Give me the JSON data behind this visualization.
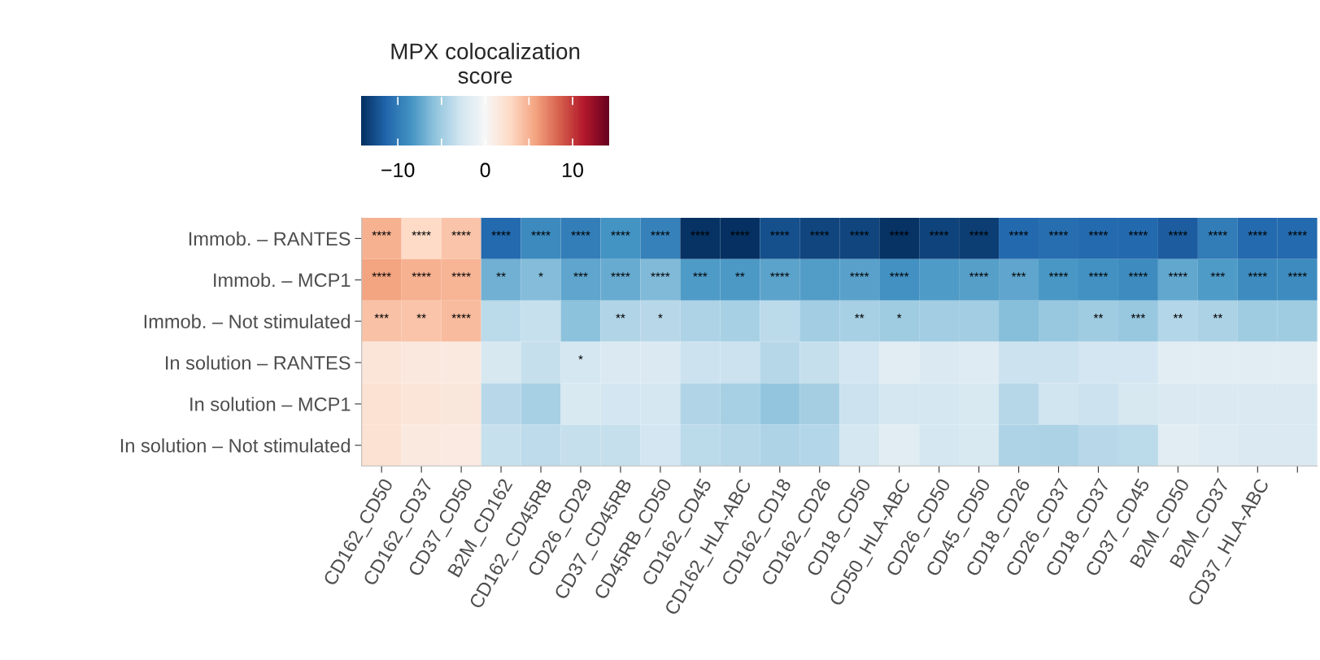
{
  "chart_data": {
    "type": "heatmap",
    "clabel": "MPX colocalization\nscore",
    "categories": [
      "CD162_CD50",
      "CD162_CD37",
      "CD37_CD50",
      "B2M_CD162",
      "CD162_CD45RB",
      "CD26_CD29",
      "CD37_CD45RB",
      "CD45RB_CD50",
      "CD162_CD45",
      "CD162_HLA-ABC",
      "CD162_CD18",
      "CD162_CD26",
      "CD18_CD50",
      "CD50_HLA-ABC",
      "CD26_CD50",
      "CD45_CD50",
      "CD18_CD26",
      "CD26_CD37",
      "CD18_CD37",
      "CD37_CD45",
      "B2M_CD50",
      "B2M_CD37",
      "CD37_HLA-ABC",
      null
    ],
    "y_categories": [
      "Immob. – RANTES",
      "Immob. – MCP1",
      "Immob. – Not stimulated",
      "In solution – RANTES",
      "In solution – MCP1",
      "In solution – Not stimulated"
    ],
    "cells": [
      [
        5,
        2.8,
        4,
        -11,
        -9,
        -9.8,
        -8.5,
        -9.6,
        -14,
        -14.1,
        -12.5,
        -13,
        -13,
        -14,
        -13.1,
        -13.5,
        -11.2,
        -10.8,
        -11,
        -11.2,
        -11.8,
        -9.9,
        -11,
        -11
      ],
      [
        5.7,
        5,
        4.8,
        -6.8,
        -6.2,
        -7.5,
        -7.2,
        -6.3,
        -8,
        -8.2,
        -7.6,
        -7.9,
        -7.7,
        -8.6,
        -8,
        -7.8,
        -7.5,
        -8.3,
        -8.6,
        -8.9,
        -7.4,
        -8,
        -8.9,
        -8.9
      ],
      [
        4.2,
        4,
        4.5,
        -3.8,
        -3.3,
        -5.8,
        -4.3,
        -3.9,
        -4.4,
        -4.7,
        -3.8,
        -4.9,
        -4.7,
        -5,
        -4.9,
        -4.9,
        -6,
        -5.4,
        -5,
        -5.4,
        -4.2,
        -4.5,
        -5,
        -5
      ],
      [
        1.8,
        1.5,
        1.4,
        -2.4,
        -3.4,
        -2.5,
        -2,
        -2,
        -3,
        -3,
        -4,
        -3.4,
        -2.6,
        -1.6,
        -2.2,
        -1.8,
        -3,
        -3.1,
        -2.6,
        -2.6,
        -1.6,
        -1.6,
        -1.6,
        -1.6
      ],
      [
        2.2,
        1.8,
        1.6,
        -3.9,
        -4.7,
        -2.3,
        -2.6,
        -2.5,
        -4.3,
        -4.7,
        -5.6,
        -4.8,
        -3.1,
        -2.5,
        -2.5,
        -2.3,
        -4.1,
        -2.8,
        -3,
        -2.4,
        -2,
        -2,
        -2.2,
        -2.2
      ],
      [
        2.2,
        1.4,
        1.3,
        -3.3,
        -3.7,
        -3.4,
        -3.4,
        -2.6,
        -3.8,
        -4,
        -4.4,
        -4.2,
        -2.5,
        -1.6,
        -2.5,
        -2.3,
        -4.4,
        -4.5,
        -3.9,
        -3.8,
        -1.6,
        -1.8,
        -2.2,
        -2.2
      ]
    ],
    "cell_labels": [
      [
        "****",
        "****",
        "****",
        "****",
        "****",
        "****",
        "****",
        "****",
        "****",
        "****",
        "****",
        "****",
        "****",
        "****",
        "****",
        "****",
        "****",
        "****",
        "****",
        "****",
        "****",
        "****",
        "****",
        "****"
      ],
      [
        "****",
        "****",
        "****",
        "**",
        "*",
        "***",
        "****",
        "****",
        "***",
        "**",
        "****",
        null,
        "****",
        "****",
        null,
        "****",
        "***",
        "****",
        "****",
        "****",
        "****",
        "***",
        "****",
        "****"
      ],
      [
        "***",
        "**",
        "****",
        null,
        null,
        null,
        "**",
        "*",
        null,
        null,
        null,
        null,
        "**",
        "*",
        null,
        null,
        null,
        null,
        "**",
        "***",
        "**",
        "**",
        null,
        null
      ],
      [
        null,
        null,
        null,
        null,
        null,
        "*",
        null,
        null,
        null,
        null,
        null,
        null,
        null,
        null,
        null,
        null,
        null,
        null,
        null,
        null,
        null,
        null,
        null,
        null
      ],
      [
        null,
        null,
        null,
        null,
        null,
        null,
        null,
        null,
        null,
        null,
        null,
        null,
        null,
        null,
        null,
        null,
        null,
        null,
        null,
        null,
        null,
        null,
        null,
        null
      ],
      [
        null,
        null,
        null,
        null,
        null,
        null,
        null,
        null,
        null,
        null,
        null,
        null,
        null,
        null,
        null,
        null,
        null,
        null,
        null,
        null,
        null,
        null,
        null,
        null
      ]
    ],
    "clim": [
      -14.2,
      14.2
    ],
    "cticks": [
      -10,
      {
        "value": -5,
        "label": null
      },
      0,
      {
        "value": 5,
        "label": null
      },
      10
    ]
  }
}
